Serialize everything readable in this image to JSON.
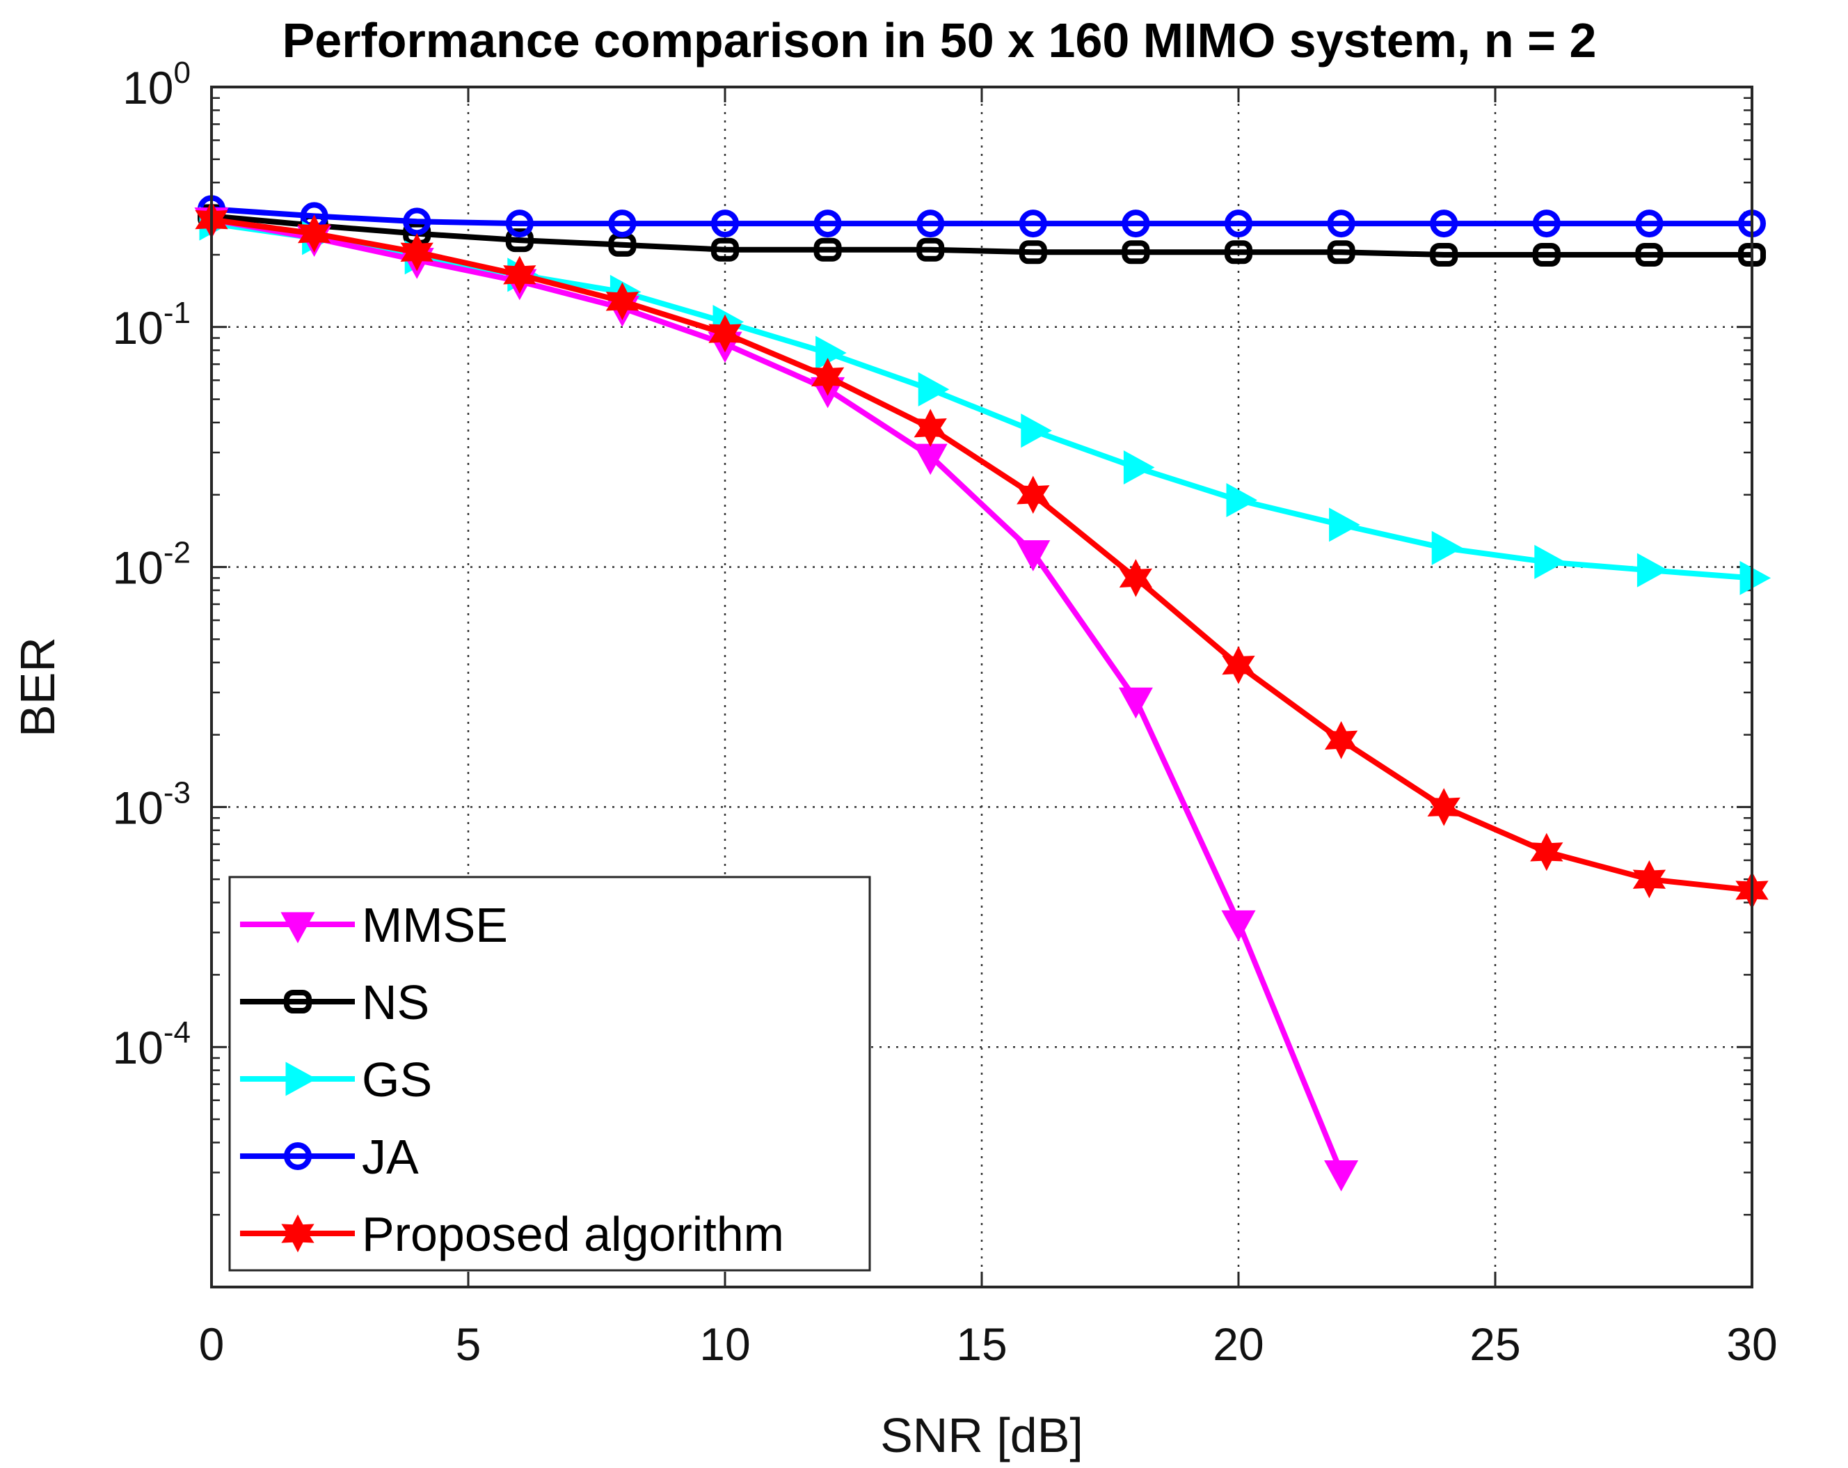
{
  "chart_data": {
    "type": "line",
    "title": "Performance comparison in 50 x 160 MIMO system, n = 2",
    "xlabel": "SNR [dB]",
    "ylabel": "BER",
    "xlim": [
      0,
      30
    ],
    "ylim": [
      1e-05,
      1
    ],
    "yscale": "log",
    "grid": "on",
    "x_ticks": [
      0,
      5,
      10,
      15,
      20,
      25,
      30
    ],
    "x_tick_labels": [
      "0",
      "5",
      "10",
      "15",
      "20",
      "25",
      "30"
    ],
    "y_ticks": [
      {
        "value": 1,
        "base": "10",
        "exp": "0"
      },
      {
        "value": 0.1,
        "base": "10",
        "exp": "-1"
      },
      {
        "value": 0.01,
        "base": "10",
        "exp": "-2"
      },
      {
        "value": 0.001,
        "base": "10",
        "exp": "-3"
      },
      {
        "value": 0.0001,
        "base": "10",
        "exp": "-4"
      }
    ],
    "legend_position": "bottom-left",
    "series": [
      {
        "name": "MMSE",
        "color": "#ff00ff",
        "marker": "triangle-down",
        "x": [
          0,
          2,
          4,
          6,
          8,
          10,
          12,
          14,
          16,
          18,
          20,
          22
        ],
        "y": [
          0.28,
          0.235,
          0.19,
          0.155,
          0.12,
          0.085,
          0.055,
          0.029,
          0.0115,
          0.0028,
          0.00033,
          3e-05
        ]
      },
      {
        "name": "NS",
        "color": "#000000",
        "marker": "square-round",
        "x": [
          0,
          2,
          4,
          6,
          8,
          10,
          12,
          14,
          16,
          18,
          20,
          22,
          24,
          26,
          28,
          30
        ],
        "y": [
          0.29,
          0.265,
          0.245,
          0.23,
          0.22,
          0.21,
          0.21,
          0.21,
          0.205,
          0.205,
          0.205,
          0.205,
          0.2,
          0.2,
          0.2,
          0.2
        ]
      },
      {
        "name": "GS",
        "color": "#00ffff",
        "marker": "triangle-right",
        "x": [
          0,
          2,
          4,
          6,
          8,
          10,
          12,
          14,
          16,
          18,
          20,
          22,
          24,
          26,
          28,
          30
        ],
        "y": [
          0.27,
          0.235,
          0.195,
          0.165,
          0.14,
          0.105,
          0.078,
          0.055,
          0.037,
          0.026,
          0.019,
          0.015,
          0.012,
          0.0105,
          0.0097,
          0.009
        ]
      },
      {
        "name": "JA",
        "color": "#0000ff",
        "marker": "circle",
        "x": [
          0,
          2,
          4,
          6,
          8,
          10,
          12,
          14,
          16,
          18,
          20,
          22,
          24,
          26,
          28,
          30
        ],
        "y": [
          0.31,
          0.29,
          0.275,
          0.27,
          0.27,
          0.27,
          0.27,
          0.27,
          0.27,
          0.27,
          0.27,
          0.27,
          0.27,
          0.27,
          0.27,
          0.27
        ]
      },
      {
        "name": "Proposed algorithm",
        "color": "#ff0000",
        "marker": "hexagram",
        "x": [
          0,
          2,
          4,
          6,
          8,
          10,
          12,
          14,
          16,
          18,
          20,
          22,
          24,
          26,
          28,
          30
        ],
        "y": [
          0.28,
          0.245,
          0.205,
          0.165,
          0.128,
          0.094,
          0.062,
          0.038,
          0.02,
          0.009,
          0.0039,
          0.0019,
          0.001,
          0.00065,
          0.0005,
          0.00045
        ]
      }
    ]
  }
}
